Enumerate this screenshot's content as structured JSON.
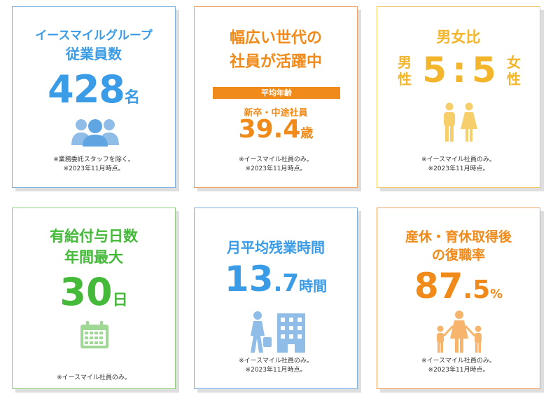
{
  "cards": [
    {
      "title_line1": "イースマイルグループ",
      "title_line2": "従業員数",
      "value": "428",
      "unit": "名",
      "icon": "people-group-icon",
      "note1": "※業務委託スタッフを除く。",
      "note2": "※2023年11月時点。"
    },
    {
      "title_line1": "幅広い世代の",
      "title_line2": "社員が活躍中",
      "bar_label": "平均年齢",
      "sub_label": "新卒・中途社員",
      "value": "39.4",
      "unit": "歳",
      "note1": "※イースマイル社員のみ。",
      "note2": "※2023年11月時点。"
    },
    {
      "title": "男女比",
      "left_label_1": "男",
      "left_label_2": "性",
      "value_left": "5",
      "separator": ":",
      "value_right": "5",
      "right_label_1": "女",
      "right_label_2": "性",
      "icon": "man-woman-icon",
      "note1": "※イースマイル社員のみ。",
      "note2": "※2023年11月時点。"
    },
    {
      "title_line1": "有給付与日数",
      "title_line2": "年間最大",
      "value": "30",
      "unit": "日",
      "icon": "calendar-icon",
      "note1": "※イースマイル社員のみ。"
    },
    {
      "title": "月平均残業時間",
      "value_int": "13",
      "value_dec": ".7",
      "unit": "時間",
      "icon": "commuter-building-icon",
      "note1": "※イースマイル社員のみ。",
      "note2": "※2023年11月時点。"
    },
    {
      "title_line1": "産休・育休取得後",
      "title_line2": "の復職率",
      "value_int": "87",
      "value_dec": ".5",
      "unit": "%",
      "icon": "family-icon",
      "note1": "※イースマイル社員のみ。",
      "note2": "※2023年11月時点。"
    }
  ],
  "colors": {
    "blue": "#3a9be6",
    "orange": "#f08a1a",
    "yellow": "#f3b52b",
    "green": "#45b93a",
    "icon_blue": "#8fbde8",
    "icon_orange": "#f6b46c",
    "icon_yellow": "#f6ce6a",
    "icon_green": "#9fd894"
  }
}
